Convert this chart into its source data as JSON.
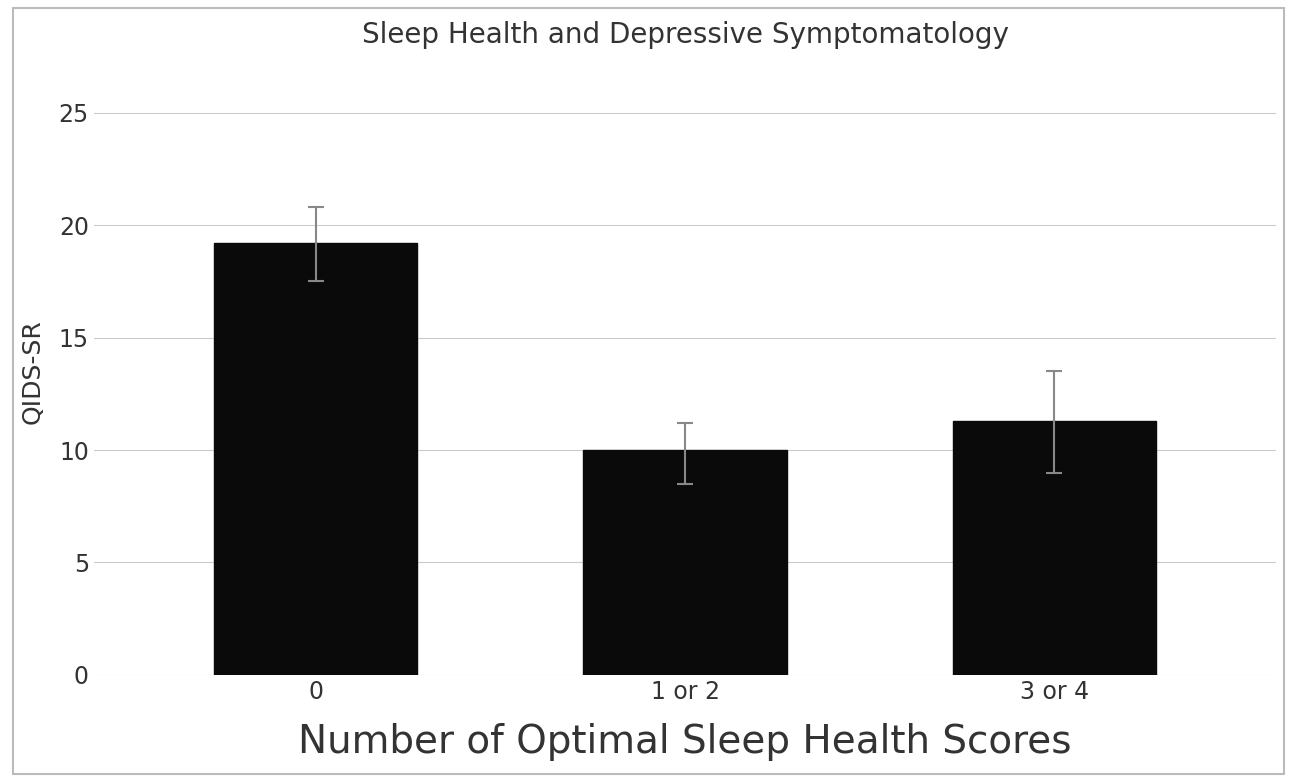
{
  "categories": [
    "0",
    "1 or 2",
    "3 or 4"
  ],
  "values": [
    19.2,
    10.0,
    11.3
  ],
  "errors_upper": [
    1.6,
    1.2,
    2.2
  ],
  "errors_lower": [
    1.7,
    1.5,
    2.3
  ],
  "bar_color": "#0a0a0a",
  "title": "Sleep Health and Depressive Symptomatology",
  "xlabel": "Number of Optimal Sleep Health Scores",
  "ylabel": "QIDS-SR",
  "ylim": [
    0,
    27
  ],
  "yticks": [
    0,
    5,
    10,
    15,
    20,
    25
  ],
  "title_fontsize": 20,
  "xlabel_fontsize": 28,
  "ylabel_fontsize": 18,
  "tick_fontsize": 17,
  "background_color": "#ffffff",
  "plot_background": "#ffffff",
  "bar_width": 0.55,
  "grid_color": "#cccccc",
  "text_color": "#333333",
  "error_color": "#888888"
}
